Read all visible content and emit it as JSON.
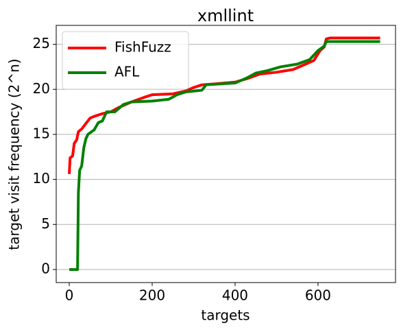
{
  "chart_data": {
    "type": "line",
    "title": "xmllint",
    "xlabel": "targets",
    "ylabel": "target visit frequency (2^n)",
    "xlim": [
      -31.5,
      787
    ],
    "ylim": [
      -1.45,
      27.1
    ],
    "xticks": [
      0,
      200,
      400,
      600
    ],
    "yticks": [
      0,
      5,
      10,
      15,
      20,
      25
    ],
    "grid": "y",
    "legend": "upper left",
    "series": [
      {
        "name": "FishFuzz",
        "color": "#ff0000",
        "x": [
          0,
          2,
          8,
          12,
          18,
          22,
          30,
          40,
          50,
          60,
          80,
          100,
          120,
          150,
          180,
          200,
          250,
          280,
          300,
          320,
          350,
          400,
          430,
          460,
          500,
          540,
          570,
          590,
          605,
          615,
          620,
          630,
          750
        ],
        "values": [
          10.6,
          12.4,
          12.6,
          14,
          14.4,
          15.3,
          15.6,
          16.2,
          16.8,
          17,
          17.3,
          17.5,
          18,
          18.6,
          19.1,
          19.4,
          19.5,
          19.8,
          20.2,
          20.5,
          20.6,
          20.8,
          21.2,
          21.7,
          21.9,
          22.2,
          22.8,
          23.2,
          24.3,
          24.7,
          25.6,
          25.7,
          25.7
        ]
      },
      {
        "name": "AFL",
        "color": "#008000",
        "x": [
          0,
          20,
          22,
          25,
          30,
          35,
          40,
          45,
          60,
          70,
          80,
          90,
          110,
          130,
          150,
          200,
          240,
          260,
          280,
          320,
          330,
          400,
          430,
          450,
          480,
          510,
          550,
          580,
          600,
          615,
          620,
          750
        ],
        "values": [
          0,
          0,
          8.5,
          11,
          11.5,
          13.5,
          14.5,
          15,
          15.5,
          16.3,
          16.5,
          17.5,
          17.5,
          18.3,
          18.6,
          18.7,
          18.9,
          19.4,
          19.7,
          19.9,
          20.5,
          20.7,
          21.3,
          21.8,
          22.1,
          22.5,
          22.8,
          23.3,
          24.3,
          24.8,
          25.3,
          25.3
        ]
      }
    ]
  }
}
